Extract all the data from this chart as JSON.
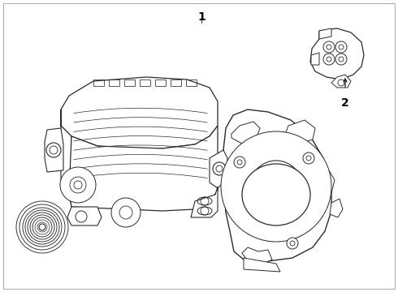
{
  "bg": "#ffffff",
  "lc": "#2a2a2a",
  "label1": "1",
  "label2": "2",
  "fig_w": 4.9,
  "fig_h": 3.6,
  "dpi": 100,
  "border": "#999999"
}
